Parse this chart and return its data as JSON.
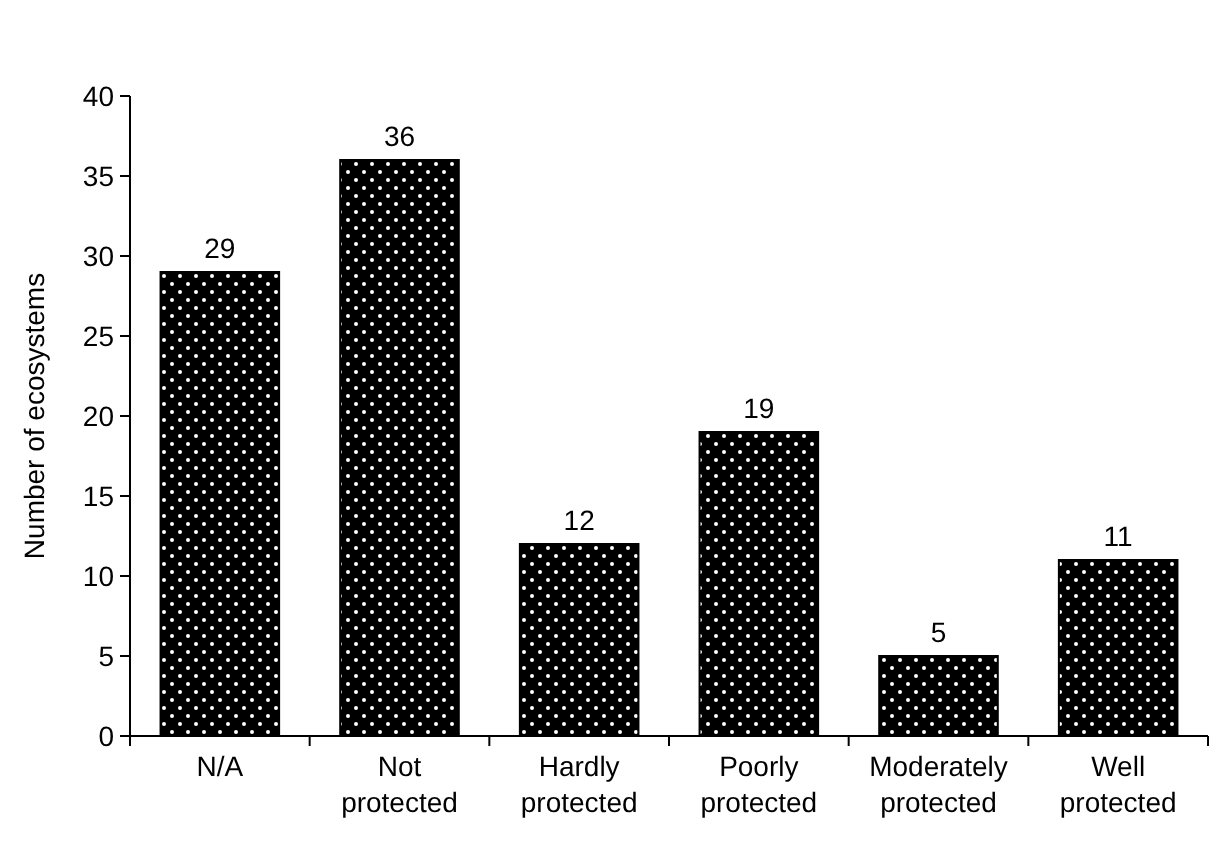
{
  "chart_data": {
    "type": "bar",
    "ylabel": "Number of ecosystems",
    "categories": [
      "N/A",
      "Not protected",
      "Hardly protected",
      "Poorly protected",
      "Moderately protected",
      "Well protected"
    ],
    "values": [
      29,
      36,
      12,
      19,
      5,
      11
    ],
    "color": "#000000",
    "ylim": [
      0,
      40
    ],
    "yticks": [
      0,
      5,
      10,
      15,
      20,
      25,
      30,
      35,
      40
    ],
    "data_labels": true
  }
}
